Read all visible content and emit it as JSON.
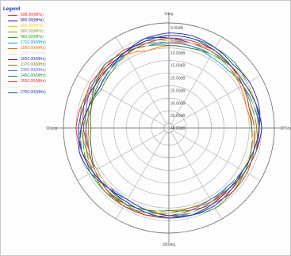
{
  "chart_data": {
    "type": "polar-line",
    "legend": {
      "title": "Legend",
      "placement": "top-left"
    },
    "angle_labels": [
      {
        "angle": 0,
        "text": "0deg"
      },
      {
        "angle": 90,
        "text": "90deg"
      },
      {
        "angle": 180,
        "text": "180deg"
      },
      {
        "angle": 270,
        "text": "270deg"
      }
    ],
    "radial_labels": [
      "0.00dB",
      "5.00dB",
      "10.00dB",
      "15.00dB",
      "20.00dB",
      "25.00dB",
      "30.00dB",
      "35.00dB",
      "40.00dB"
    ],
    "radial_scale": {
      "outer_db": 0,
      "inner_db": -40,
      "step_db": 5
    },
    "series": [
      {
        "name": "698.00(MHz)",
        "color": "#ff2a2a",
        "values": [
          -8,
          -7,
          -6,
          -7,
          -8,
          -6,
          -5,
          -6,
          -8,
          -9,
          -7,
          -6,
          -6,
          -7,
          -8,
          -8,
          -7,
          -6,
          -6,
          -7,
          -8,
          -7,
          -6,
          -7
        ]
      },
      {
        "name": "800.00(MHz)",
        "color": "#1a1a9a",
        "values": [
          -6,
          -5,
          -7,
          -9,
          -10,
          -9,
          -7,
          -5,
          -6,
          -8,
          -8,
          -7,
          -6,
          -6,
          -7,
          -8,
          -7,
          -6,
          -5,
          -6,
          -7,
          -8,
          -8,
          -7
        ]
      },
      {
        "name": "800.00(MHz)",
        "color": "#ffd200",
        "values": [
          -9,
          -8,
          -7,
          -6,
          -7,
          -8,
          -9,
          -8,
          -7,
          -6,
          -7,
          -8,
          -8,
          -7,
          -6,
          -7,
          -8,
          -8,
          -7,
          -6,
          -6,
          -7,
          -8,
          -9
        ]
      },
      {
        "name": "880.00(MHz)",
        "color": "#9a9a2a",
        "values": [
          -7,
          -8,
          -9,
          -8,
          -7,
          -6,
          -7,
          -8,
          -9,
          -8,
          -7,
          -6,
          -6,
          -7,
          -8,
          -9,
          -8,
          -7,
          -6,
          -7,
          -8,
          -8,
          -7,
          -7
        ]
      },
      {
        "name": "960.00(MHz)",
        "color": "#2aa52a",
        "values": [
          -5,
          -6,
          -8,
          -10,
          -11,
          -9,
          -8,
          -7,
          -6,
          -6,
          -7,
          -8,
          -7,
          -6,
          -5,
          -6,
          -7,
          -8,
          -8,
          -7,
          -6,
          -5,
          -5,
          -5
        ]
      },
      {
        "name": "1710.00(MHz)",
        "color": "#00a0c8",
        "values": [
          -8,
          -7,
          -8,
          -9,
          -8,
          -7,
          -6,
          -7,
          -8,
          -9,
          -9,
          -8,
          -7,
          -7,
          -8,
          -9,
          -8,
          -7,
          -6,
          -7,
          -8,
          -9,
          -9,
          -8
        ]
      },
      {
        "name": "1880.00(MHz)",
        "color": "#ff6a00",
        "values": [
          -9,
          -10,
          -8,
          -7,
          -8,
          -9,
          -10,
          -9,
          -8,
          -7,
          -7,
          -8,
          -9,
          -9,
          -8,
          -7,
          -7,
          -8,
          -9,
          -10,
          -9,
          -8,
          -8,
          -9
        ]
      },
      {
        "name": "1990.00(MHz)",
        "color": "#dcdcdc",
        "values": [
          -6,
          -7,
          -7,
          -8,
          -9,
          -8,
          -7,
          -6,
          -7,
          -8,
          -9,
          -9,
          -8,
          -7,
          -6,
          -6,
          -7,
          -8,
          -8,
          -7,
          -6,
          -6,
          -7,
          -6
        ]
      },
      {
        "name": "2050.00(MHz)",
        "color": "#2a2acd",
        "values": [
          -4,
          -5,
          -7,
          -9,
          -10,
          -9,
          -7,
          -6,
          -7,
          -8,
          -9,
          -8,
          -7,
          -6,
          -6,
          -7,
          -8,
          -7,
          -6,
          -5,
          -5,
          -6,
          -5,
          -4
        ]
      },
      {
        "name": "2170.00(MHz)",
        "color": "#7a7a28",
        "values": [
          -7,
          -6,
          -7,
          -8,
          -9,
          -10,
          -9,
          -8,
          -7,
          -6,
          -6,
          -7,
          -8,
          -9,
          -9,
          -8,
          -7,
          -6,
          -7,
          -8,
          -8,
          -7,
          -7,
          -7
        ]
      },
      {
        "name": "2300.00(MHz)",
        "color": "#4f6fd8",
        "values": [
          -8,
          -8,
          -7,
          -6,
          -7,
          -8,
          -9,
          -9,
          -8,
          -7,
          -6,
          -6,
          -7,
          -8,
          -9,
          -9,
          -8,
          -7,
          -6,
          -6,
          -7,
          -8,
          -8,
          -8
        ]
      },
      {
        "name": "2450.00(MHz)",
        "color": "#208a40",
        "values": [
          -9,
          -8,
          -7,
          -6,
          -8,
          -10,
          -11,
          -10,
          -8,
          -7,
          -7,
          -8,
          -9,
          -8,
          -7,
          -6,
          -7,
          -8,
          -9,
          -9,
          -8,
          -7,
          -8,
          -9
        ]
      },
      {
        "name": "2550.00(MHz)",
        "color": "#e03030",
        "values": [
          -6,
          -7,
          -8,
          -7,
          -6,
          -7,
          -8,
          -9,
          -8,
          -7,
          -6,
          -6,
          -7,
          -8,
          -7,
          -6,
          -6,
          -7,
          -8,
          -9,
          -8,
          -7,
          -6,
          -6
        ]
      },
      {
        "name": "2690.00(MHz)",
        "color": "#f0f0c8",
        "values": [
          -7,
          -8,
          -9,
          -9,
          -8,
          -7,
          -6,
          -7,
          -8,
          -9,
          -10,
          -9,
          -8,
          -7,
          -7,
          -8,
          -9,
          -9,
          -8,
          -7,
          -7,
          -8,
          -8,
          -7
        ]
      },
      {
        "name": "2700.00(MHz)",
        "color": "#1840c0",
        "values": [
          -5,
          -6,
          -7,
          -8,
          -8,
          -7,
          -6,
          -6,
          -7,
          -8,
          -8,
          -7,
          -6,
          -6,
          -7,
          -8,
          -8,
          -7,
          -6,
          -6,
          -7,
          -7,
          -6,
          -5
        ]
      }
    ]
  }
}
